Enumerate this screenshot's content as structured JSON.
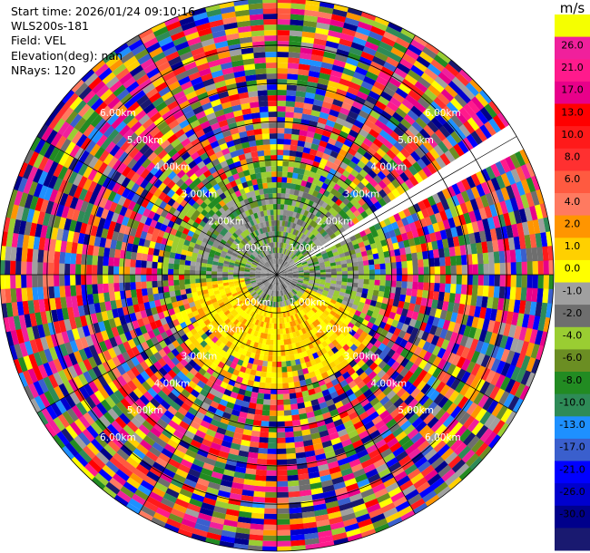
{
  "info": {
    "start_time": "Start time: 2026/01/24 09:10:16",
    "site": "WLS200s-181",
    "field": "Field: VEL",
    "elevation": "Elevation(deg): nan",
    "nrays": "NRays: 120"
  },
  "chart_data": {
    "type": "ppi",
    "field": "VEL",
    "n_rays": 120,
    "range_ring_labels": [
      "1.00km",
      "2.00km",
      "3.00km",
      "4.00km",
      "5.00km",
      "6.00km"
    ],
    "max_range_km": 7.1,
    "missing_sector_deg": [
      57,
      63
    ],
    "colorbar": {
      "unit": "m/s",
      "ticks": [
        "26.0",
        "21.0",
        "17.0",
        "13.0",
        "10.0",
        "8.0",
        "6.0",
        "4.0",
        "2.0",
        "1.0",
        "0.0",
        "-1.0",
        "-2.0",
        "-4.0",
        "-6.0",
        "-8.0",
        "-10.0",
        "-13.0",
        "-17.0",
        "-21.0",
        "-26.0",
        "-30.0"
      ],
      "colors": [
        "#f5ff00",
        "#f0209c",
        "#ff1a8c",
        "#e8008a",
        "#ff0000",
        "#ff1a1a",
        "#ff3030",
        "#ff5a40",
        "#ff7a60",
        "#ff9500",
        "#ffd000",
        "#ffff00",
        "#a0a0a0",
        "#6e6e6e",
        "#9acd32",
        "#6b8e23",
        "#228b22",
        "#2e8b57",
        "#1e90ff",
        "#3a5fcd",
        "#0000ff",
        "#0000cd",
        "#00008b",
        "#191970"
      ]
    }
  }
}
